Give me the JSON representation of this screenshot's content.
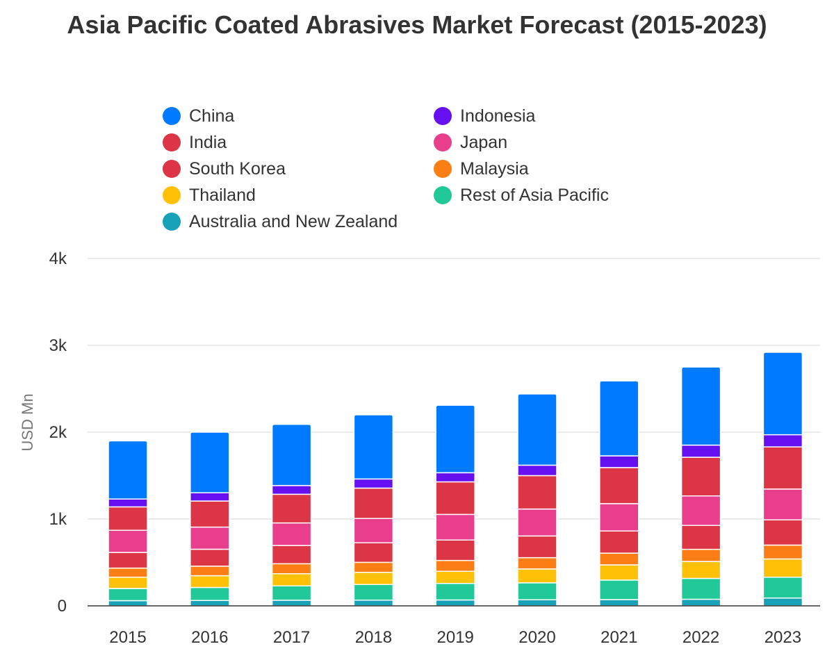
{
  "chart_data": {
    "type": "bar",
    "stacked": true,
    "title": "Asia Pacific Coated Abrasives Market Forecast (2015-2023)",
    "ylabel": "USD Mn",
    "xlabel": "",
    "ylim": [
      0,
      4000
    ],
    "yticks": [
      0,
      1000,
      2000,
      3000,
      4000
    ],
    "ytick_labels": [
      "0",
      "1k",
      "2k",
      "3k",
      "4k"
    ],
    "grid": true,
    "legend_position": "top",
    "categories": [
      "2015",
      "2016",
      "2017",
      "2018",
      "2019",
      "2020",
      "2021",
      "2022",
      "2023"
    ],
    "series": [
      {
        "name": "Australia and New Zealand",
        "color": "#17a2b8",
        "values": [
          60,
          62,
          65,
          66,
          68,
          70,
          72,
          76,
          90
        ]
      },
      {
        "name": "Rest of Asia Pacific",
        "color": "#20c997",
        "values": [
          140,
          150,
          165,
          180,
          190,
          195,
          225,
          240,
          240
        ]
      },
      {
        "name": "Thailand",
        "color": "#ffc107",
        "values": [
          130,
          135,
          140,
          140,
          140,
          160,
          175,
          195,
          210
        ]
      },
      {
        "name": "Malaysia",
        "color": "#fd7e14",
        "values": [
          105,
          110,
          115,
          115,
          125,
          130,
          135,
          140,
          160
        ]
      },
      {
        "name": "South Korea",
        "color": "#dc3545",
        "values": [
          180,
          195,
          210,
          225,
          235,
          250,
          255,
          275,
          290
        ]
      },
      {
        "name": "Japan",
        "color": "#e83e8c",
        "values": [
          255,
          255,
          260,
          280,
          295,
          310,
          315,
          340,
          355
        ]
      },
      {
        "name": "India",
        "color": "#dc3545",
        "values": [
          270,
          300,
          330,
          350,
          375,
          385,
          415,
          445,
          485
        ]
      },
      {
        "name": "Indonesia",
        "color": "#6610f2",
        "values": [
          90,
          95,
          100,
          105,
          105,
          120,
          135,
          140,
          140
        ]
      },
      {
        "name": "China",
        "color": "#007bff",
        "values": [
          670,
          698,
          705,
          739,
          777,
          820,
          863,
          899,
          950
        ]
      }
    ]
  },
  "legend": {
    "items": [
      {
        "label": "China",
        "color": "#007bff"
      },
      {
        "label": "Indonesia",
        "color": "#6610f2"
      },
      {
        "label": "India",
        "color": "#dc3545"
      },
      {
        "label": "Japan",
        "color": "#e83e8c"
      },
      {
        "label": "South Korea",
        "color": "#dc3545"
      },
      {
        "label": "Malaysia",
        "color": "#fd7e14"
      },
      {
        "label": "Thailand",
        "color": "#ffc107"
      },
      {
        "label": "Rest of Asia Pacific",
        "color": "#20c997"
      },
      {
        "label": "Australia and New Zealand",
        "color": "#17a2b8"
      }
    ]
  }
}
